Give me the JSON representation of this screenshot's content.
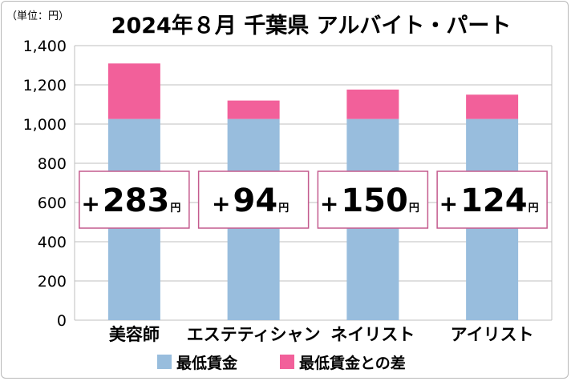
{
  "unit_label": "（単位：円）",
  "colors": {
    "base": "#98BDDD",
    "diff": "#F2609A",
    "box_border": "#C45B8E",
    "grid": "#BFBFBF"
  },
  "chart_data": {
    "type": "bar",
    "stacked": true,
    "title": "2024年８月 千葉県 アルバイト・パート",
    "categories": [
      "美容師",
      "エステティシャン",
      "ネイリスト",
      "アイリスト"
    ],
    "series": [
      {
        "name": "最低賃金",
        "values": [
          1026,
          1026,
          1026,
          1026
        ]
      },
      {
        "name": "最低賃金との差",
        "values": [
          283,
          94,
          150,
          124
        ]
      }
    ],
    "annotations": [
      {
        "sign": "+",
        "value": "283",
        "unit": "円"
      },
      {
        "sign": "+",
        "value": "94",
        "unit": "円"
      },
      {
        "sign": "+",
        "value": "150",
        "unit": "円"
      },
      {
        "sign": "+",
        "value": "124",
        "unit": "円"
      }
    ],
    "yticks": [
      "0",
      "200",
      "400",
      "600",
      "800",
      "1,000",
      "1,200",
      "1,400"
    ],
    "ylim": [
      0,
      1400
    ],
    "grid": true,
    "legend_position": "bottom"
  }
}
